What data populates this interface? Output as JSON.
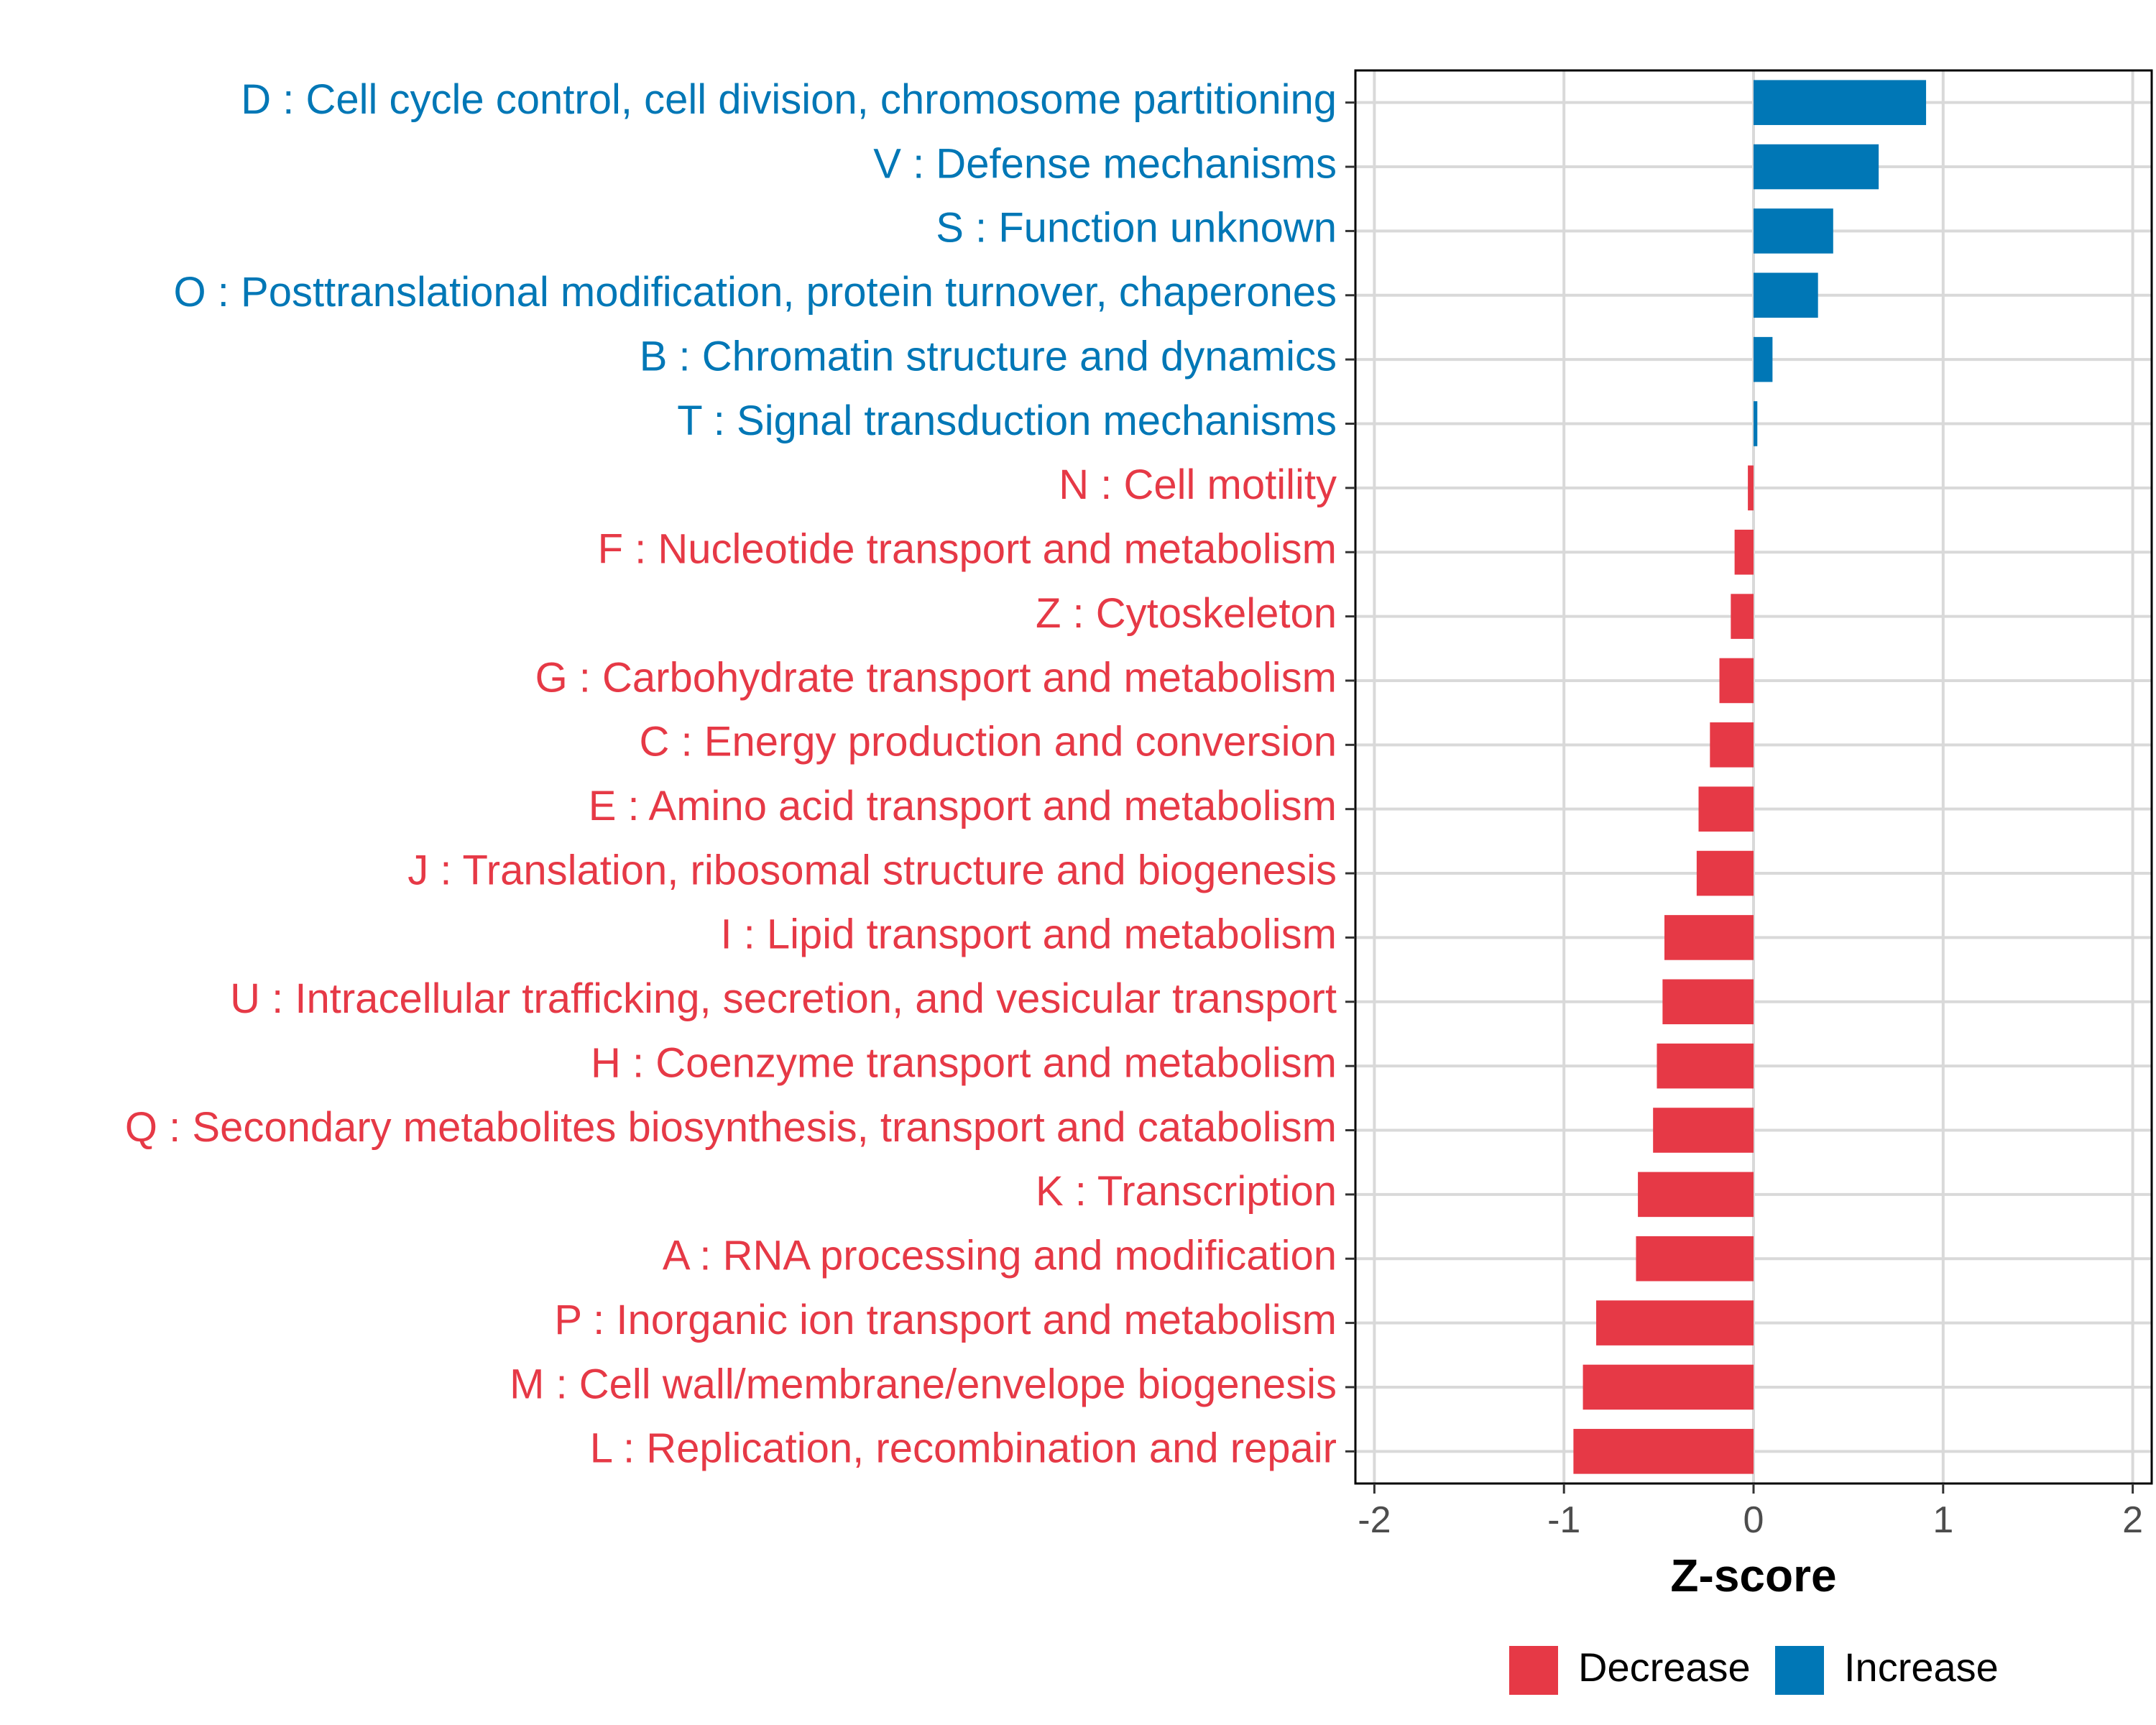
{
  "chart_data": {
    "type": "bar",
    "orientation": "horizontal",
    "title": "",
    "xlabel": "Z-score",
    "ylabel": "",
    "xlim": [
      -2.1,
      2.1
    ],
    "x_ticks": [
      -2,
      -1,
      0,
      1,
      2
    ],
    "x_tick_labels": [
      "-2",
      "-1",
      "0",
      "1",
      "2"
    ],
    "grid": true,
    "colors": {
      "Increase": "#0077b6",
      "Decrease": "#e63946"
    },
    "categories": [
      "D : Cell cycle control, cell division, chromosome partitioning",
      "V : Defense mechanisms",
      "S : Function unknown",
      "O : Posttranslational modification, protein turnover, chaperones",
      "B : Chromatin structure and dynamics",
      "T : Signal transduction mechanisms",
      "N : Cell motility",
      "F : Nucleotide transport and metabolism",
      "Z : Cytoskeleton",
      "G : Carbohydrate transport and metabolism",
      "C : Energy production and conversion",
      "E : Amino acid transport and metabolism",
      "J : Translation, ribosomal structure and biogenesis",
      "I : Lipid transport and metabolism",
      "U : Intracellular trafficking, secretion, and vesicular transport",
      "H : Coenzyme transport and metabolism",
      "Q : Secondary metabolites biosynthesis, transport and catabolism",
      "K : Transcription",
      "A : RNA processing and modification",
      "P : Inorganic ion transport and metabolism",
      "M : Cell wall/membrane/envelope biogenesis",
      "L : Replication, recombination and repair"
    ],
    "values": [
      0.91,
      0.66,
      0.42,
      0.34,
      0.1,
      0.02,
      -0.03,
      -0.1,
      -0.12,
      -0.18,
      -0.23,
      -0.29,
      -0.3,
      -0.47,
      -0.48,
      -0.51,
      -0.53,
      -0.61,
      -0.62,
      -0.83,
      -0.9,
      -0.95
    ],
    "legend": {
      "position": "bottom",
      "entries": [
        {
          "name": "Decrease",
          "color": "#e63946"
        },
        {
          "name": "Increase",
          "color": "#0077b6"
        }
      ]
    }
  }
}
